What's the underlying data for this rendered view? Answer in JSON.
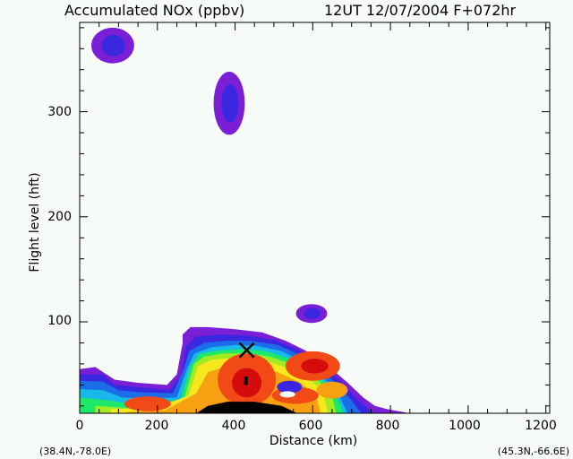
{
  "chart_data": {
    "type": "heatmap",
    "title_left": "Accumulated NOx  (ppbv)",
    "title_right": "12UT 12/07/2004  F+072hr",
    "xlabel": "Distance  (km)",
    "ylabel": "Flight level  (hft)",
    "xlim": [
      0,
      1210
    ],
    "ylim": [
      13,
      385
    ],
    "x_ticks": [
      "0",
      "200",
      "400",
      "600",
      "800",
      "1000",
      "1200"
    ],
    "x_tick_values": [
      0,
      200,
      400,
      600,
      800,
      1000,
      1200
    ],
    "y_ticks": [
      "100",
      "200",
      "300"
    ],
    "y_tick_values": [
      100,
      200,
      300
    ],
    "corner_left": "(38.4N,-78.0E)",
    "corner_right": "(45.3N,-66.6E)",
    "marker": {
      "symbol": "X",
      "x": 430,
      "y": 73
    },
    "colors": {
      "background": "#f7fbf7",
      "levels": [
        "#7a1fd6",
        "#3a28e0",
        "#1c6ee8",
        "#18b8e8",
        "#1ee86a",
        "#a2ea22",
        "#f6e81c",
        "#f7a012",
        "#f14a16",
        "#d60c0c",
        "#000000"
      ]
    },
    "features": [
      {
        "name": "blob-upper-left",
        "cx": 85,
        "cy": 363,
        "rx": 55,
        "ry": 17,
        "levels": [
          0,
          1
        ]
      },
      {
        "name": "blob-upper-mid",
        "cx": 385,
        "cy": 308,
        "rx": 40,
        "ry": 30,
        "levels": [
          0,
          1
        ]
      },
      {
        "name": "blob-small",
        "cx": 597,
        "cy": 108,
        "rx": 40,
        "ry": 9,
        "levels": [
          0,
          1
        ]
      }
    ]
  }
}
